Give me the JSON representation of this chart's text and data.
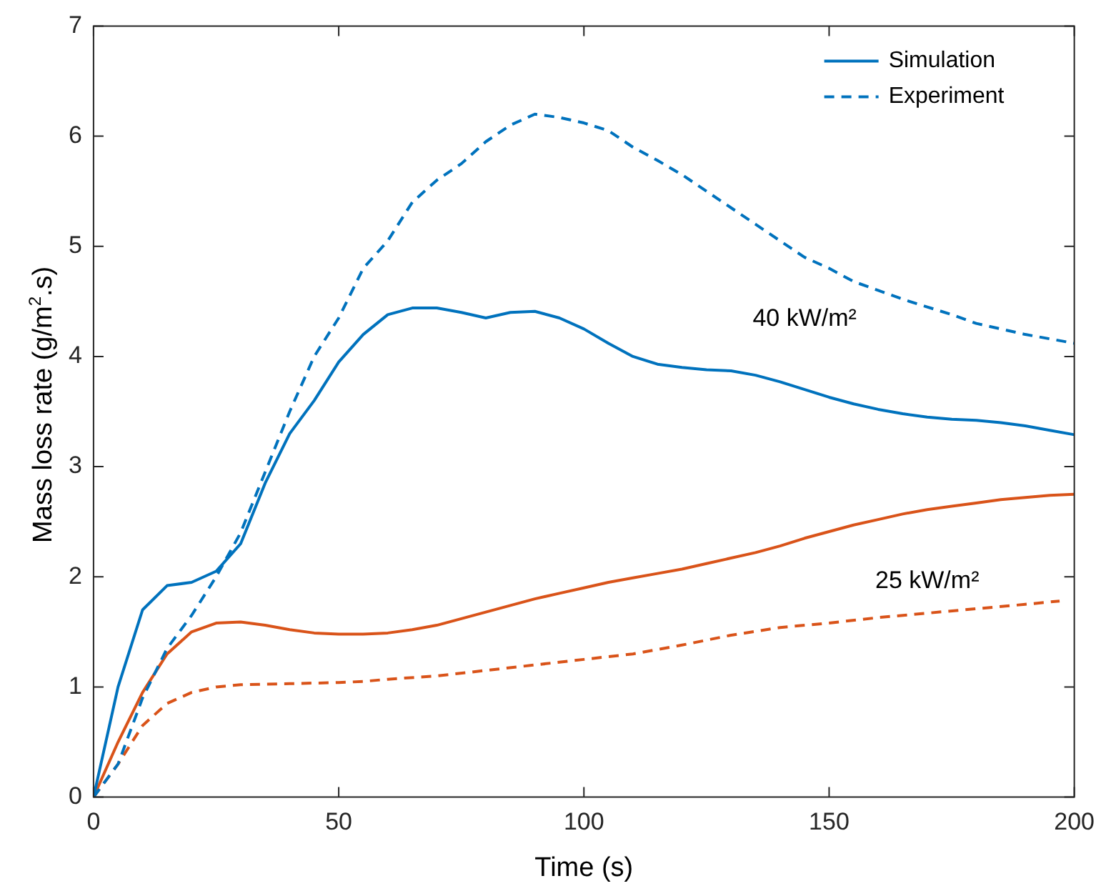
{
  "chart_data": {
    "type": "line",
    "xlabel": "Time (s)",
    "ylabel": "Mass loss rate (g/m$^{2}$.s)",
    "xlim": [
      0,
      200
    ],
    "ylim": [
      0,
      7
    ],
    "xticks": [
      0,
      50,
      100,
      150,
      200
    ],
    "yticks": [
      0,
      1,
      2,
      3,
      4,
      5,
      6,
      7
    ],
    "grid": false,
    "legend": "top right",
    "marker": "none",
    "series": [
      {
        "name": "Simulation",
        "color": "#0072bd",
        "line_style": "solid",
        "x": [
          0,
          5,
          10,
          15,
          20,
          25,
          30,
          35,
          40,
          45,
          50,
          55,
          60,
          65,
          70,
          75,
          80,
          85,
          90,
          95,
          100,
          105,
          110,
          115,
          120,
          125,
          130,
          135,
          140,
          145,
          150,
          155,
          160,
          165,
          170,
          175,
          180,
          185,
          190,
          195,
          200
        ],
        "values": [
          0,
          1.0,
          1.7,
          1.92,
          1.95,
          2.05,
          2.3,
          2.85,
          3.3,
          3.6,
          3.95,
          4.2,
          4.38,
          4.44,
          4.44,
          4.4,
          4.35,
          4.4,
          4.41,
          4.35,
          4.25,
          4.12,
          4.0,
          3.93,
          3.9,
          3.88,
          3.87,
          3.83,
          3.77,
          3.7,
          3.63,
          3.57,
          3.52,
          3.48,
          3.45,
          3.43,
          3.42,
          3.4,
          3.37,
          3.33,
          3.29
        ]
      },
      {
        "name": "Experiment",
        "color": "#0072bd",
        "line_style": "dashed",
        "x": [
          0,
          5,
          10,
          15,
          20,
          25,
          30,
          35,
          40,
          45,
          50,
          55,
          60,
          65,
          70,
          75,
          80,
          85,
          90,
          95,
          100,
          105,
          110,
          115,
          120,
          125,
          130,
          135,
          140,
          145,
          150,
          155,
          160,
          165,
          170,
          175,
          180,
          185,
          190,
          195,
          200
        ],
        "values": [
          0,
          0.3,
          0.9,
          1.35,
          1.65,
          2.0,
          2.4,
          2.95,
          3.5,
          4.0,
          4.35,
          4.8,
          5.05,
          5.4,
          5.6,
          5.75,
          5.95,
          6.1,
          6.2,
          6.17,
          6.12,
          6.05,
          5.9,
          5.78,
          5.65,
          5.5,
          5.35,
          5.2,
          5.05,
          4.9,
          4.8,
          4.68,
          4.6,
          4.52,
          4.45,
          4.38,
          4.3,
          4.25,
          4.2,
          4.16,
          4.12
        ]
      },
      {
        "color": "#d95319",
        "line_style": "solid",
        "x": [
          0,
          5,
          10,
          15,
          20,
          25,
          30,
          35,
          40,
          45,
          50,
          55,
          60,
          65,
          70,
          75,
          80,
          85,
          90,
          95,
          100,
          105,
          110,
          115,
          120,
          125,
          130,
          135,
          140,
          145,
          150,
          155,
          160,
          165,
          170,
          175,
          180,
          185,
          190,
          195,
          200
        ],
        "values": [
          0,
          0.5,
          0.95,
          1.3,
          1.5,
          1.58,
          1.59,
          1.56,
          1.52,
          1.49,
          1.48,
          1.48,
          1.49,
          1.52,
          1.56,
          1.62,
          1.68,
          1.74,
          1.8,
          1.85,
          1.9,
          1.95,
          1.99,
          2.03,
          2.07,
          2.12,
          2.17,
          2.22,
          2.28,
          2.35,
          2.41,
          2.47,
          2.52,
          2.57,
          2.61,
          2.64,
          2.67,
          2.7,
          2.72,
          2.74,
          2.75
        ]
      },
      {
        "color": "#d95319",
        "line_style": "dashed",
        "x": [
          0,
          5,
          10,
          15,
          20,
          25,
          30,
          40,
          50,
          55,
          60,
          70,
          80,
          90,
          100,
          110,
          120,
          130,
          140,
          150,
          160,
          170,
          180,
          190,
          197
        ],
        "values": [
          0,
          0.3,
          0.65,
          0.85,
          0.95,
          1.0,
          1.02,
          1.03,
          1.04,
          1.05,
          1.07,
          1.1,
          1.15,
          1.2,
          1.25,
          1.3,
          1.38,
          1.47,
          1.54,
          1.58,
          1.63,
          1.67,
          1.71,
          1.75,
          1.78
        ]
      }
    ],
    "annotations": [
      "40 kW/m²",
      "25 kW/m²"
    ]
  }
}
